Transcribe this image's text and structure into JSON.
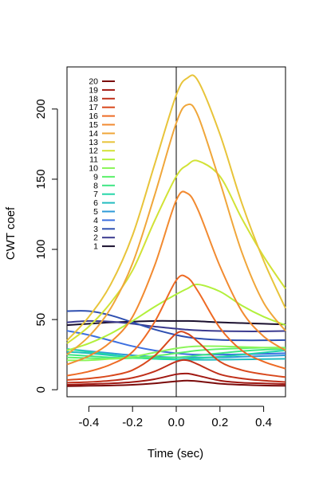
{
  "chart_data": {
    "type": "line",
    "title": "",
    "xlabel": "Time (sec)",
    "ylabel": "CWT coef",
    "xlim": [
      -0.5,
      0.5
    ],
    "ylim": [
      -5,
      230
    ],
    "xticks": [
      -0.4,
      -0.2,
      0.0,
      0.2,
      0.4
    ],
    "xtick_labels": [
      "-0.4",
      "-0.2",
      "0.0",
      "0.2",
      "0.4"
    ],
    "yticks": [
      0,
      50,
      100,
      150,
      200
    ],
    "ytick_labels": [
      "0",
      "50",
      "100",
      "150",
      "200"
    ],
    "vline_x": 0.0,
    "legend_position": "top-left",
    "legend_order": "20 to 1 (top to bottom)",
    "x": [
      -0.5,
      -0.4,
      -0.3,
      -0.2,
      -0.1,
      0.0,
      0.05,
      0.1,
      0.2,
      0.3,
      0.4,
      0.5
    ],
    "series": [
      {
        "name": "1",
        "color": "#1a0f2e",
        "values": [
          46,
          47,
          48,
          48.5,
          49,
          49,
          49,
          48.8,
          48,
          47.5,
          47,
          46.5
        ]
      },
      {
        "name": "2",
        "color": "#3b3a8f",
        "values": [
          48,
          49,
          48.5,
          47,
          45,
          43.5,
          42.8,
          42.3,
          41.8,
          41.6,
          41.6,
          41.8
        ]
      },
      {
        "name": "3",
        "color": "#2e4fb0",
        "values": [
          56,
          56,
          53,
          48,
          43,
          39,
          37.5,
          36.5,
          35.5,
          35.2,
          35.2,
          35.4
        ]
      },
      {
        "name": "4",
        "color": "#3c6fe0",
        "values": [
          42,
          39,
          35,
          31,
          28,
          26,
          25.3,
          25,
          25,
          25.2,
          25.6,
          26
        ]
      },
      {
        "name": "5",
        "color": "#2e9ad8",
        "values": [
          29,
          27.5,
          26,
          24.5,
          23.5,
          23,
          23,
          23,
          23,
          23.5,
          24,
          24.5
        ]
      },
      {
        "name": "6",
        "color": "#22bcbf",
        "values": [
          27,
          26,
          24.5,
          23,
          22,
          21.5,
          21.3,
          21.3,
          21.4,
          21.6,
          21.8,
          22
        ]
      },
      {
        "name": "7",
        "color": "#24d6a8",
        "values": [
          29,
          27,
          25,
          23,
          22,
          21.5,
          21.8,
          22.5,
          23.5,
          25,
          26.5,
          28
        ]
      },
      {
        "name": "8",
        "color": "#3ee684",
        "values": [
          25,
          24,
          23,
          22.5,
          22.5,
          23,
          23.5,
          24.5,
          26,
          27.5,
          28.5,
          29
        ]
      },
      {
        "name": "9",
        "color": "#5cf06a",
        "values": [
          23,
          22.5,
          22,
          22.5,
          24,
          26,
          27,
          28,
          29,
          29.5,
          30,
          30
        ]
      },
      {
        "name": "10",
        "color": "#8cf55a",
        "values": [
          21,
          21,
          22,
          23.5,
          26.5,
          29.5,
          30.5,
          31,
          31,
          30.5,
          30,
          29.5
        ]
      },
      {
        "name": "11",
        "color": "#b2f03c",
        "values": [
          28,
          33,
          40,
          49,
          59,
          68,
          72,
          75,
          70,
          60,
          52,
          46
        ]
      },
      {
        "name": "12",
        "color": "#d2e236",
        "values": [
          33,
          45,
          62,
          85,
          120,
          152,
          160,
          163,
          152,
          122,
          95,
          72
        ]
      },
      {
        "name": "13",
        "color": "#e8c43a",
        "values": [
          35,
          52,
          75,
          110,
          160,
          210,
          222,
          220,
          182,
          133,
          92,
          58
        ]
      },
      {
        "name": "14",
        "color": "#f0a63a",
        "values": [
          25,
          38,
          58,
          90,
          138,
          190,
          203,
          195,
          148,
          98,
          62,
          42
        ]
      },
      {
        "name": "15",
        "color": "#f28a30",
        "values": [
          18,
          24,
          34,
          52,
          88,
          135,
          140,
          128,
          88,
          56,
          38,
          28
        ]
      },
      {
        "name": "16",
        "color": "#ee6a24",
        "values": [
          10,
          13,
          18,
          27,
          48,
          78,
          80,
          70,
          44,
          28,
          20,
          15
        ]
      },
      {
        "name": "17",
        "color": "#d8481c",
        "values": [
          7,
          8,
          10,
          14,
          24,
          40,
          40,
          34,
          20,
          14,
          11,
          9
        ]
      },
      {
        "name": "18",
        "color": "#c0301a",
        "values": [
          5,
          5.5,
          6.5,
          8.5,
          13,
          20,
          21,
          18,
          11,
          8,
          6.5,
          5.5
        ]
      },
      {
        "name": "19",
        "color": "#a01812",
        "values": [
          3.5,
          4,
          4.5,
          5.5,
          7.5,
          11,
          11.5,
          10,
          6.5,
          5,
          4.5,
          4
        ]
      },
      {
        "name": "20",
        "color": "#7a0a0a",
        "values": [
          2.5,
          2.8,
          3,
          3.5,
          4.5,
          6,
          6.5,
          6,
          4.3,
          3.5,
          3,
          2.8
        ]
      }
    ]
  }
}
